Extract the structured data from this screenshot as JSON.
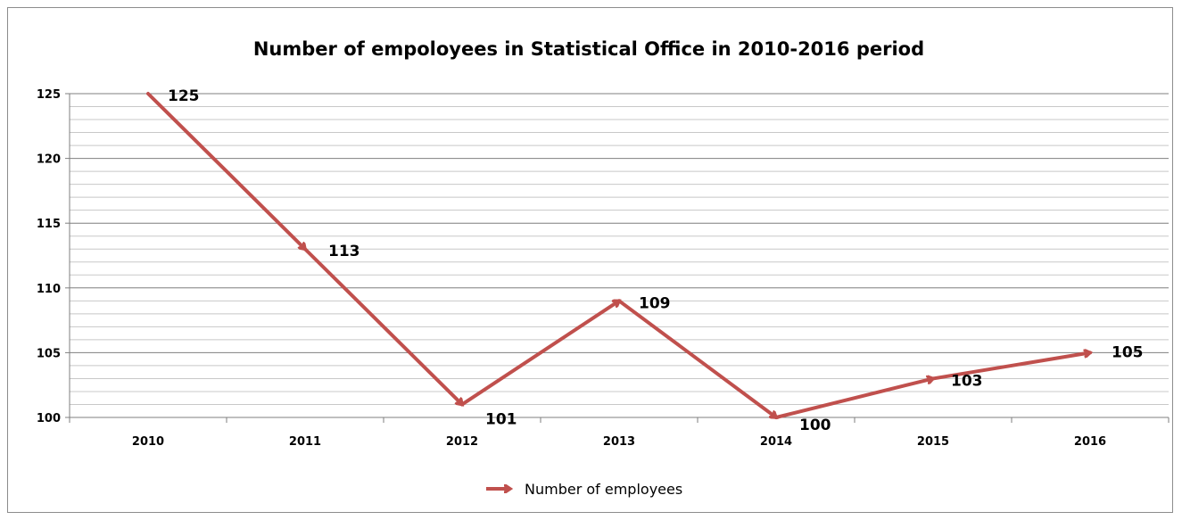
{
  "chart_data": {
    "type": "line",
    "title": "Number of empoloyees in Statistical Office in 2010-2016 period",
    "xlabel": "",
    "ylabel": "",
    "categories": [
      "2010",
      "2011",
      "2012",
      "2013",
      "2014",
      "2015",
      "2016"
    ],
    "series": [
      {
        "name": "Number of employees",
        "values": [
          125,
          113,
          101,
          109,
          100,
          103,
          105
        ]
      }
    ],
    "ylim": [
      100,
      125
    ],
    "yticks": [
      100,
      105,
      110,
      115,
      120,
      125
    ],
    "minor_gridlines": true,
    "legend_position": "bottom",
    "line_style": "arrows",
    "colors": {
      "series": "#c0504d",
      "grid_major": "#7f7f7f",
      "grid_minor": "#c8c8c8",
      "frame": "#8c8c8c"
    }
  }
}
